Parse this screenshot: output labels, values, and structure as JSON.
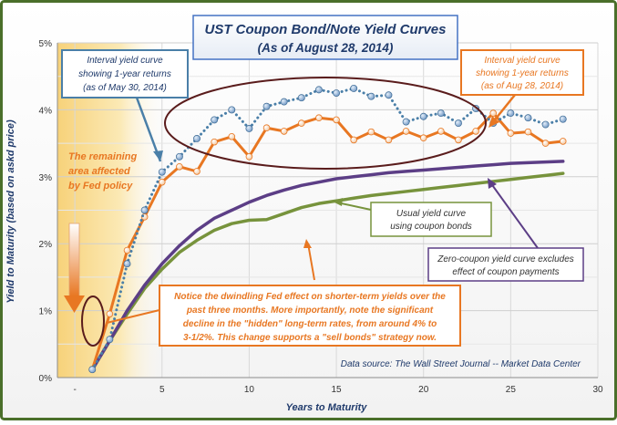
{
  "chart_data": {
    "type": "line",
    "title": "UST Coupon Bond/Note Yield Curves",
    "subtitle": "(As of August 28, 2014)",
    "xlabel": "Years to Maturity",
    "ylabel": "Yield to Maturity (based on askd price)",
    "xlim": [
      -1,
      30
    ],
    "ylim": [
      0,
      5
    ],
    "x_ticks": [
      "-",
      "5",
      "10",
      "15",
      "20",
      "25",
      "30"
    ],
    "y_ticks": [
      "0%",
      "1%",
      "2%",
      "3%",
      "4%",
      "5%"
    ],
    "grid": true,
    "series": [
      {
        "name": "Interval yield curve showing 1-year returns (as of May 30, 2014)",
        "color": "#4a7fa8",
        "style": "dotted-markers",
        "x": [
          1,
          2,
          3,
          4,
          5,
          6,
          7,
          8,
          9,
          10,
          11,
          12,
          13,
          14,
          15,
          16,
          17,
          18,
          19,
          20,
          21,
          22,
          23,
          24,
          25,
          26,
          27,
          28
        ],
        "y": [
          0.12,
          0.57,
          1.7,
          2.5,
          3.07,
          3.3,
          3.57,
          3.85,
          4.0,
          3.72,
          4.05,
          4.12,
          4.18,
          4.3,
          4.25,
          4.32,
          4.2,
          4.22,
          3.82,
          3.9,
          3.95,
          3.8,
          4.02,
          3.8,
          3.95,
          3.88,
          3.78,
          3.86
        ]
      },
      {
        "name": "Interval yield curve showing 1-year returns (as of Aug 28, 2014)",
        "color": "#e87722",
        "style": "solid-markers",
        "x": [
          1,
          2,
          3,
          4,
          5,
          6,
          7,
          8,
          9,
          10,
          11,
          12,
          13,
          14,
          15,
          16,
          17,
          18,
          19,
          20,
          21,
          22,
          23,
          24,
          25,
          26,
          27,
          28
        ],
        "y": [
          0.12,
          0.95,
          1.9,
          2.4,
          2.92,
          3.15,
          3.08,
          3.52,
          3.6,
          3.3,
          3.73,
          3.68,
          3.8,
          3.88,
          3.85,
          3.55,
          3.67,
          3.55,
          3.68,
          3.58,
          3.68,
          3.55,
          3.68,
          3.95,
          3.65,
          3.67,
          3.5,
          3.53
        ]
      },
      {
        "name": "Zero-coupon yield curve",
        "color": "#5c3e86",
        "style": "solid",
        "x": [
          1,
          2,
          3,
          4,
          5,
          6,
          7,
          8,
          9,
          10,
          11,
          12,
          13,
          14,
          15,
          16,
          17,
          18,
          19,
          20,
          21,
          22,
          23,
          24,
          25,
          26,
          27,
          28
        ],
        "y": [
          0.12,
          0.55,
          1.0,
          1.38,
          1.7,
          1.97,
          2.2,
          2.38,
          2.5,
          2.62,
          2.72,
          2.8,
          2.87,
          2.92,
          2.97,
          3.0,
          3.03,
          3.06,
          3.08,
          3.1,
          3.12,
          3.14,
          3.16,
          3.18,
          3.2,
          3.21,
          3.22,
          3.23
        ]
      },
      {
        "name": "Usual yield curve using coupon bonds",
        "color": "#77933c",
        "style": "solid",
        "x": [
          1,
          2,
          3,
          4,
          5,
          6,
          7,
          8,
          9,
          10,
          11,
          12,
          13,
          14,
          15,
          16,
          17,
          18,
          19,
          20,
          21,
          22,
          23,
          24,
          25,
          26,
          27,
          28
        ],
        "y": [
          0.12,
          0.55,
          0.95,
          1.33,
          1.62,
          1.87,
          2.05,
          2.2,
          2.3,
          2.35,
          2.36,
          2.45,
          2.54,
          2.6,
          2.64,
          2.68,
          2.72,
          2.75,
          2.78,
          2.81,
          2.84,
          2.87,
          2.9,
          2.93,
          2.96,
          2.99,
          3.02,
          3.05
        ]
      }
    ],
    "annotations": {
      "may_label": [
        "Interval yield curve",
        "showing 1-year returns",
        "(as of May 30, 2014)"
      ],
      "aug_label": [
        "Interval yield curve",
        "showing 1-year returns",
        "(as of Aug 28, 2014)"
      ],
      "fed_label": [
        "The remaining",
        "area affected",
        "by Fed policy"
      ],
      "usual_label": [
        "Usual yield curve",
        "using coupon bonds"
      ],
      "zero_label": [
        "Zero-coupon yield curve excludes",
        "effect of coupon payments"
      ],
      "notice_label": [
        "Notice the dwindling Fed effect on shorter-term yields over the",
        "past three months.  More importantly, note the significant",
        "decline in the \"hidden\" long-term rates, from around 4% to",
        "3-1/2%. This change supports a \"sell bonds\" strategy now."
      ],
      "source": "Data source: The Wall Street Journal -- Market Data Center"
    }
  }
}
